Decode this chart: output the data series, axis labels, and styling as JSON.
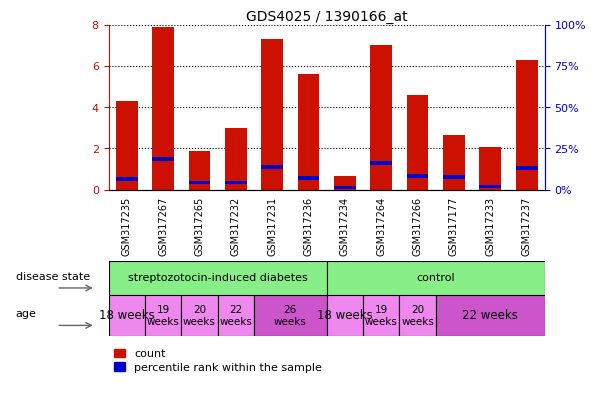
{
  "title": "GDS4025 / 1390166_at",
  "samples": [
    "GSM317235",
    "GSM317267",
    "GSM317265",
    "GSM317232",
    "GSM317231",
    "GSM317236",
    "GSM317234",
    "GSM317264",
    "GSM317266",
    "GSM317177",
    "GSM317233",
    "GSM317237"
  ],
  "count_values": [
    4.3,
    7.9,
    1.85,
    3.0,
    7.3,
    5.6,
    0.65,
    7.0,
    4.6,
    2.65,
    2.05,
    6.3
  ],
  "percentile_values": [
    0.5,
    1.5,
    0.35,
    0.35,
    1.1,
    0.55,
    0.1,
    1.3,
    0.65,
    0.6,
    0.15,
    1.05
  ],
  "bar_color": "#cc1100",
  "percentile_color": "#0000cc",
  "ylim": [
    0,
    8
  ],
  "yticks": [
    0,
    2,
    4,
    6,
    8
  ],
  "right_ylabels": [
    "0%",
    "25%",
    "50%",
    "75%",
    "100%"
  ],
  "tick_color_left": "#cc1100",
  "tick_color_right": "#0000cc",
  "disease_groups": [
    {
      "label": "streptozotocin-induced diabetes",
      "start": 0,
      "end": 6,
      "color": "#88ee88"
    },
    {
      "label": "control",
      "start": 6,
      "end": 12,
      "color": "#88ee88"
    }
  ],
  "age_data": [
    {
      "label": "18 weeks",
      "start": 0,
      "end": 1,
      "color": "#ee88ee",
      "fs": 8.5
    },
    {
      "label": "19\nweeks",
      "start": 1,
      "end": 2,
      "color": "#ee88ee",
      "fs": 7.5
    },
    {
      "label": "20\nweeks",
      "start": 2,
      "end": 3,
      "color": "#ee88ee",
      "fs": 7.5
    },
    {
      "label": "22\nweeks",
      "start": 3,
      "end": 4,
      "color": "#ee88ee",
      "fs": 7.5
    },
    {
      "label": "26\nweeks",
      "start": 4,
      "end": 6,
      "color": "#cc55cc",
      "fs": 7.5
    },
    {
      "label": "18 weeks",
      "start": 6,
      "end": 7,
      "color": "#ee88ee",
      "fs": 8.5
    },
    {
      "label": "19\nweeks",
      "start": 7,
      "end": 8,
      "color": "#ee88ee",
      "fs": 7.5
    },
    {
      "label": "20\nweeks",
      "start": 8,
      "end": 9,
      "color": "#ee88ee",
      "fs": 7.5
    },
    {
      "label": "22 weeks",
      "start": 9,
      "end": 12,
      "color": "#cc55cc",
      "fs": 8.5
    }
  ]
}
